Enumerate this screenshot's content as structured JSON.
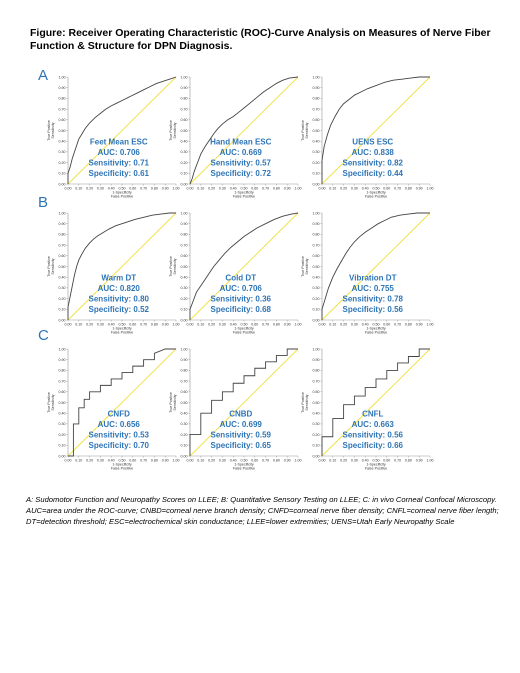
{
  "figure": {
    "title": "Figure: Receiver Operating Characteristic (ROC)-Curve Analysis on Measures of Nerve Fiber Function & Structure for DPN Diagnosis.",
    "caption": "A: Sudomotor Function and Neuropathy Scores on LLEE; B: Quantitative Sensory Testing on LLEE; C: in vivo Corneal Confocal Microscopy. AUC=area under the ROC-curve; CNBD=corneal nerve branch density; CNFD=corneal nerve fiber density; CNFL=corneal nerve fiber length; DT=detection threshold; ESC=electrochemical skin conductance; LLEE=lower extremities; UENS=Utah Early Neuropathy Scale",
    "rows": [
      "A",
      "B",
      "C"
    ],
    "colors": {
      "curve": "#444444",
      "diagonal": "#f0e040",
      "annotation": "#2e75b6"
    }
  },
  "chart_data": [
    {
      "type": "line",
      "name": "Feet Mean ESC",
      "auc": "AUC: 0.706",
      "sensitivity": "Sensitivity: 0.71",
      "specificity": "Specificity: 0.61",
      "xlabel": "1-Specificity",
      "xlabel2": "False Positive",
      "ylabel": "Sensitivity",
      "ylabel2": "True Positive",
      "xlim": [
        0,
        1
      ],
      "ylim": [
        0,
        1
      ],
      "xticks": [
        "0.00",
        "0.10",
        "0.20",
        "0.30",
        "0.40",
        "0.50",
        "0.60",
        "0.70",
        "0.80",
        "0.90",
        "1.00"
      ],
      "yticks": [
        "0.00",
        "0.10",
        "0.20",
        "0.30",
        "0.40",
        "0.50",
        "0.60",
        "0.70",
        "0.80",
        "0.90",
        "1.00"
      ],
      "x": [
        0,
        0,
        0.02,
        0.04,
        0.06,
        0.08,
        0.1,
        0.13,
        0.16,
        0.2,
        0.25,
        0.3,
        0.35,
        0.4,
        0.46,
        0.52,
        0.58,
        0.64,
        0.7,
        0.76,
        0.82,
        0.88,
        0.94,
        1.0
      ],
      "y": [
        0,
        0.1,
        0.16,
        0.24,
        0.3,
        0.36,
        0.42,
        0.47,
        0.52,
        0.57,
        0.62,
        0.66,
        0.7,
        0.73,
        0.76,
        0.79,
        0.82,
        0.85,
        0.88,
        0.91,
        0.94,
        0.96,
        0.98,
        1.0
      ]
    },
    {
      "type": "line",
      "name": "Hand Mean ESC",
      "auc": "AUC: 0.669",
      "sensitivity": "Sensitivity: 0.57",
      "specificity": "Specificity: 0.72",
      "xlabel": "1-Specificity",
      "xlabel2": "False Positive",
      "ylabel": "Sensitivity",
      "ylabel2": "True Positive",
      "xlim": [
        0,
        1
      ],
      "ylim": [
        0,
        1
      ],
      "xticks": [
        "0.00",
        "0.10",
        "0.20",
        "0.30",
        "0.40",
        "0.50",
        "0.60",
        "0.70",
        "0.80",
        "0.90",
        "1.00"
      ],
      "yticks": [
        "0.00",
        "0.10",
        "0.20",
        "0.30",
        "0.40",
        "0.50",
        "0.60",
        "0.70",
        "0.80",
        "0.90",
        "1.00"
      ],
      "x": [
        0,
        0.02,
        0.04,
        0.07,
        0.1,
        0.14,
        0.18,
        0.22,
        0.26,
        0.3,
        0.35,
        0.4,
        0.45,
        0.5,
        0.56,
        0.62,
        0.68,
        0.74,
        0.8,
        0.86,
        0.92,
        1.0
      ],
      "y": [
        0,
        0.05,
        0.12,
        0.2,
        0.28,
        0.35,
        0.41,
        0.47,
        0.52,
        0.56,
        0.6,
        0.63,
        0.67,
        0.71,
        0.76,
        0.81,
        0.86,
        0.9,
        0.94,
        0.97,
        0.99,
        1.0
      ]
    },
    {
      "type": "line",
      "name": "UENS ESC",
      "auc": "AUC: 0.838",
      "sensitivity": "Sensitivity: 0.82",
      "specificity": "Specificity: 0.44",
      "xlabel": "1-Specificity",
      "xlabel2": "False Positive",
      "ylabel": "Sensitivity",
      "ylabel2": "True Positive",
      "xlim": [
        0,
        1
      ],
      "ylim": [
        0,
        1
      ],
      "xticks": [
        "0.00",
        "0.10",
        "0.20",
        "0.30",
        "0.40",
        "0.50",
        "0.60",
        "0.70",
        "0.80",
        "0.90",
        "1.00"
      ],
      "yticks": [
        "0.00",
        "0.10",
        "0.20",
        "0.30",
        "0.40",
        "0.50",
        "0.60",
        "0.70",
        "0.80",
        "0.90",
        "1.00"
      ],
      "x": [
        0,
        0,
        0.02,
        0.05,
        0.08,
        0.12,
        0.16,
        0.2,
        0.25,
        0.3,
        0.36,
        0.42,
        0.5,
        0.58,
        0.66,
        0.74,
        0.82,
        0.9,
        1.0
      ],
      "y": [
        0,
        0.22,
        0.35,
        0.46,
        0.55,
        0.63,
        0.7,
        0.75,
        0.79,
        0.83,
        0.86,
        0.89,
        0.92,
        0.95,
        0.97,
        0.98,
        0.99,
        1.0,
        1.0
      ]
    },
    {
      "type": "line",
      "name": "Warm DT",
      "auc": "AUC: 0.820",
      "sensitivity": "Sensitivity: 0.80",
      "specificity": "Specificity: 0.52",
      "xlabel": "1-Specificity",
      "xlabel2": "False Positive",
      "ylabel": "Sensitivity",
      "ylabel2": "True Positive",
      "xlim": [
        0,
        1
      ],
      "ylim": [
        0,
        1
      ],
      "xticks": [
        "0.00",
        "0.10",
        "0.20",
        "0.30",
        "0.40",
        "0.50",
        "0.60",
        "0.70",
        "0.80",
        "0.90",
        "1.00"
      ],
      "yticks": [
        "0.00",
        "0.10",
        "0.20",
        "0.30",
        "0.40",
        "0.50",
        "0.60",
        "0.70",
        "0.80",
        "0.90",
        "1.00"
      ],
      "x": [
        0,
        0,
        0.02,
        0.04,
        0.06,
        0.08,
        0.1,
        0.13,
        0.16,
        0.2,
        0.24,
        0.28,
        0.33,
        0.38,
        0.44,
        0.5,
        0.56,
        0.62,
        0.7,
        0.78,
        0.86,
        0.94,
        1.0
      ],
      "y": [
        0,
        0.12,
        0.22,
        0.32,
        0.42,
        0.5,
        0.56,
        0.62,
        0.67,
        0.72,
        0.76,
        0.79,
        0.82,
        0.85,
        0.88,
        0.9,
        0.92,
        0.94,
        0.96,
        0.98,
        0.99,
        1.0,
        1.0
      ]
    },
    {
      "type": "line",
      "name": "Cold DT",
      "auc": "AUC: 0.706",
      "sensitivity": "Sensitivity: 0.36",
      "specificity": "Specificity: 0.68",
      "xlabel": "1-Specificity",
      "xlabel2": "False Positive",
      "ylabel": "Sensitivity",
      "ylabel2": "True Positive",
      "xlim": [
        0,
        1
      ],
      "ylim": [
        0,
        1
      ],
      "xticks": [
        "0.00",
        "0.10",
        "0.20",
        "0.30",
        "0.40",
        "0.50",
        "0.60",
        "0.70",
        "0.80",
        "0.90",
        "1.00"
      ],
      "yticks": [
        "0.00",
        "0.10",
        "0.20",
        "0.30",
        "0.40",
        "0.50",
        "0.60",
        "0.70",
        "0.80",
        "0.90",
        "1.00"
      ],
      "x": [
        0,
        0,
        0.03,
        0.06,
        0.1,
        0.14,
        0.18,
        0.22,
        0.27,
        0.32,
        0.38,
        0.44,
        0.5,
        0.56,
        0.62,
        0.7,
        0.78,
        0.86,
        0.94,
        1.0
      ],
      "y": [
        0,
        0.1,
        0.18,
        0.26,
        0.32,
        0.38,
        0.44,
        0.5,
        0.56,
        0.62,
        0.68,
        0.73,
        0.78,
        0.82,
        0.86,
        0.9,
        0.94,
        0.97,
        0.99,
        1.0
      ]
    },
    {
      "type": "line",
      "name": "Vibration DT",
      "auc": "AUC: 0.755",
      "sensitivity": "Sensitivity: 0.78",
      "specificity": "Specificity: 0.56",
      "xlabel": "1-Specificity",
      "xlabel2": "False Positive",
      "ylabel": "Sensitivity",
      "ylabel2": "True Positive",
      "xlim": [
        0,
        1
      ],
      "ylim": [
        0,
        1
      ],
      "xticks": [
        "0.00",
        "0.10",
        "0.20",
        "0.30",
        "0.40",
        "0.50",
        "0.60",
        "0.70",
        "0.80",
        "0.90",
        "1.00"
      ],
      "yticks": [
        "0.00",
        "0.10",
        "0.20",
        "0.30",
        "0.40",
        "0.50",
        "0.60",
        "0.70",
        "0.80",
        "0.90",
        "1.00"
      ],
      "x": [
        0,
        0,
        0.03,
        0.06,
        0.1,
        0.14,
        0.18,
        0.22,
        0.26,
        0.3,
        0.35,
        0.4,
        0.46,
        0.52,
        0.58,
        0.64,
        0.72,
        0.8,
        0.88,
        1.0
      ],
      "y": [
        0,
        0.1,
        0.2,
        0.3,
        0.4,
        0.48,
        0.55,
        0.62,
        0.68,
        0.73,
        0.78,
        0.82,
        0.86,
        0.9,
        0.93,
        0.96,
        0.98,
        0.99,
        1.0,
        1.0
      ]
    },
    {
      "type": "line",
      "name": "CNFD",
      "auc": "AUC: 0.656",
      "sensitivity": "Sensitivity: 0.53",
      "specificity": "Specificity: 0.70",
      "xlabel": "1-Specificity",
      "xlabel2": "False Positive",
      "ylabel": "Sensitivity",
      "ylabel2": "True Positive",
      "xlim": [
        0,
        1
      ],
      "ylim": [
        0,
        1
      ],
      "xticks": [
        "0.00",
        "0.10",
        "0.20",
        "0.30",
        "0.40",
        "0.50",
        "0.60",
        "0.70",
        "0.80",
        "0.90",
        "1.00"
      ],
      "yticks": [
        "0.00",
        "0.10",
        "0.20",
        "0.30",
        "0.40",
        "0.50",
        "0.60",
        "0.70",
        "0.80",
        "0.90",
        "1.00"
      ],
      "x": [
        0,
        0.05,
        0.05,
        0.1,
        0.1,
        0.15,
        0.15,
        0.2,
        0.2,
        0.3,
        0.3,
        0.4,
        0.4,
        0.5,
        0.5,
        0.6,
        0.6,
        0.7,
        0.7,
        0.8,
        0.8,
        0.9,
        1.0
      ],
      "y": [
        0,
        0,
        0.3,
        0.3,
        0.45,
        0.45,
        0.53,
        0.53,
        0.6,
        0.6,
        0.66,
        0.66,
        0.72,
        0.72,
        0.78,
        0.78,
        0.84,
        0.84,
        0.9,
        0.9,
        0.96,
        1.0,
        1.0
      ]
    },
    {
      "type": "line",
      "name": "CNBD",
      "auc": "AUC: 0.699",
      "sensitivity": "Sensitivity: 0.59",
      "specificity": "Specificity: 0.65",
      "xlabel": "1-Specificity",
      "xlabel2": "False Positive",
      "ylabel": "Sensitivity",
      "ylabel2": "True Positive",
      "xlim": [
        0,
        1
      ],
      "ylim": [
        0,
        1
      ],
      "xticks": [
        "0.00",
        "0.10",
        "0.20",
        "0.30",
        "0.40",
        "0.50",
        "0.60",
        "0.70",
        "0.80",
        "0.90",
        "1.00"
      ],
      "yticks": [
        "0.00",
        "0.10",
        "0.20",
        "0.30",
        "0.40",
        "0.50",
        "0.60",
        "0.70",
        "0.80",
        "0.90",
        "1.00"
      ],
      "x": [
        0,
        0,
        0.1,
        0.1,
        0.2,
        0.2,
        0.3,
        0.3,
        0.4,
        0.4,
        0.5,
        0.5,
        0.6,
        0.6,
        0.7,
        0.7,
        0.8,
        0.8,
        0.9,
        0.9,
        1.0
      ],
      "y": [
        0,
        0.2,
        0.2,
        0.4,
        0.4,
        0.52,
        0.52,
        0.6,
        0.6,
        0.68,
        0.68,
        0.75,
        0.75,
        0.82,
        0.82,
        0.88,
        0.88,
        0.94,
        0.94,
        1.0,
        1.0
      ]
    },
    {
      "type": "line",
      "name": "CNFL",
      "auc": "AUC: 0.663",
      "sensitivity": "Sensitivity: 0.56",
      "specificity": "Specificity: 0.66",
      "xlabel": "1-Specificity",
      "xlabel2": "False Positive",
      "ylabel": "Sensitivity",
      "ylabel2": "True Positive",
      "xlim": [
        0,
        1
      ],
      "ylim": [
        0,
        1
      ],
      "xticks": [
        "0.00",
        "0.10",
        "0.20",
        "0.30",
        "0.40",
        "0.50",
        "0.60",
        "0.70",
        "0.80",
        "0.90",
        "1.00"
      ],
      "yticks": [
        "0.00",
        "0.10",
        "0.20",
        "0.30",
        "0.40",
        "0.50",
        "0.60",
        "0.70",
        "0.80",
        "0.90",
        "1.00"
      ],
      "x": [
        0,
        0,
        0.1,
        0.1,
        0.2,
        0.2,
        0.3,
        0.3,
        0.4,
        0.4,
        0.5,
        0.5,
        0.6,
        0.6,
        0.7,
        0.7,
        0.8,
        0.8,
        0.9,
        0.9,
        1.0
      ],
      "y": [
        0,
        0.18,
        0.18,
        0.35,
        0.35,
        0.48,
        0.48,
        0.56,
        0.56,
        0.64,
        0.64,
        0.72,
        0.72,
        0.8,
        0.8,
        0.87,
        0.87,
        0.93,
        0.93,
        1.0,
        1.0
      ]
    }
  ]
}
